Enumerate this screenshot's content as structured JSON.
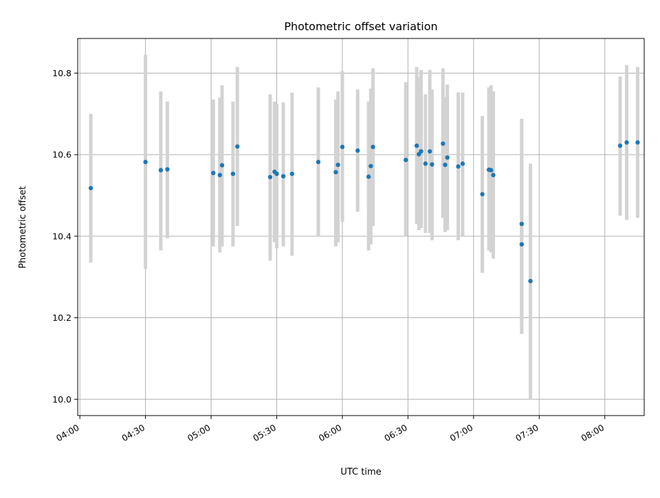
{
  "chart_data": {
    "type": "scatter",
    "title": "Photometric offset variation",
    "xlabel": "UTC time",
    "ylabel": "Photometric offset",
    "x_ticks": [
      "04:00",
      "04:30",
      "05:00",
      "05:30",
      "06:00",
      "06:30",
      "07:00",
      "07:30",
      "08:00"
    ],
    "y_ticks": [
      "10.0",
      "10.2",
      "10.4",
      "10.6",
      "10.8"
    ],
    "xlim": [
      "03:59",
      "08:18"
    ],
    "ylim": [
      9.96,
      10.885
    ],
    "grid": true,
    "colors": {
      "point": "#1f77b4",
      "errorbar": "#d3d3d3",
      "grid": "#b0b0b0"
    },
    "series": [
      {
        "x": [
          "04:05",
          "04:30",
          "04:37",
          "04:40",
          "05:01",
          "05:04",
          "05:05",
          "05:10",
          "05:12",
          "05:27",
          "05:29",
          "05:30",
          "05:33",
          "05:37",
          "05:49",
          "05:57",
          "05:58",
          "06:00",
          "06:07",
          "06:12",
          "06:13",
          "06:14",
          "06:29",
          "06:34",
          "06:35",
          "06:36",
          "06:38",
          "06:40",
          "06:41",
          "06:46",
          "06:47",
          "06:48",
          "06:53",
          "06:55",
          "07:04",
          "07:07",
          "07:08",
          "07:09",
          "07:22",
          "07:22",
          "07:26",
          "08:07",
          "08:10",
          "08:15"
        ],
        "y": [
          10.518,
          10.582,
          10.562,
          10.564,
          10.555,
          10.55,
          10.574,
          10.553,
          10.62,
          10.545,
          10.558,
          10.553,
          10.547,
          10.553,
          10.582,
          10.557,
          10.575,
          10.619,
          10.61,
          10.546,
          10.572,
          10.619,
          10.587,
          10.622,
          10.601,
          10.608,
          10.578,
          10.608,
          10.576,
          10.627,
          10.575,
          10.593,
          10.571,
          10.578,
          10.503,
          10.563,
          10.562,
          10.55,
          10.38,
          10.43,
          10.29,
          10.622,
          10.63,
          10.63
        ],
        "err_low": [
          10.335,
          10.32,
          10.365,
          10.395,
          10.375,
          10.36,
          10.375,
          10.375,
          10.425,
          10.34,
          10.385,
          10.37,
          10.375,
          10.352,
          10.4,
          10.375,
          10.385,
          10.435,
          10.46,
          10.365,
          10.38,
          10.425,
          10.4,
          10.43,
          10.415,
          10.42,
          10.408,
          10.408,
          10.39,
          10.445,
          10.41,
          10.415,
          10.39,
          10.4,
          10.31,
          10.365,
          10.36,
          10.345,
          10.16,
          10.195,
          10.0,
          10.45,
          10.44,
          10.445
        ],
        "err_high": [
          10.7,
          10.845,
          10.755,
          10.73,
          10.735,
          10.74,
          10.77,
          10.73,
          10.815,
          10.748,
          10.73,
          10.725,
          10.728,
          10.752,
          10.765,
          10.735,
          10.755,
          10.805,
          10.76,
          10.73,
          10.762,
          10.812,
          10.778,
          10.815,
          10.79,
          10.808,
          10.748,
          10.808,
          10.76,
          10.812,
          10.742,
          10.772,
          10.753,
          10.752,
          10.695,
          10.765,
          10.77,
          10.755,
          10.605,
          10.688,
          10.578,
          10.792,
          10.82,
          10.815
        ]
      }
    ]
  }
}
